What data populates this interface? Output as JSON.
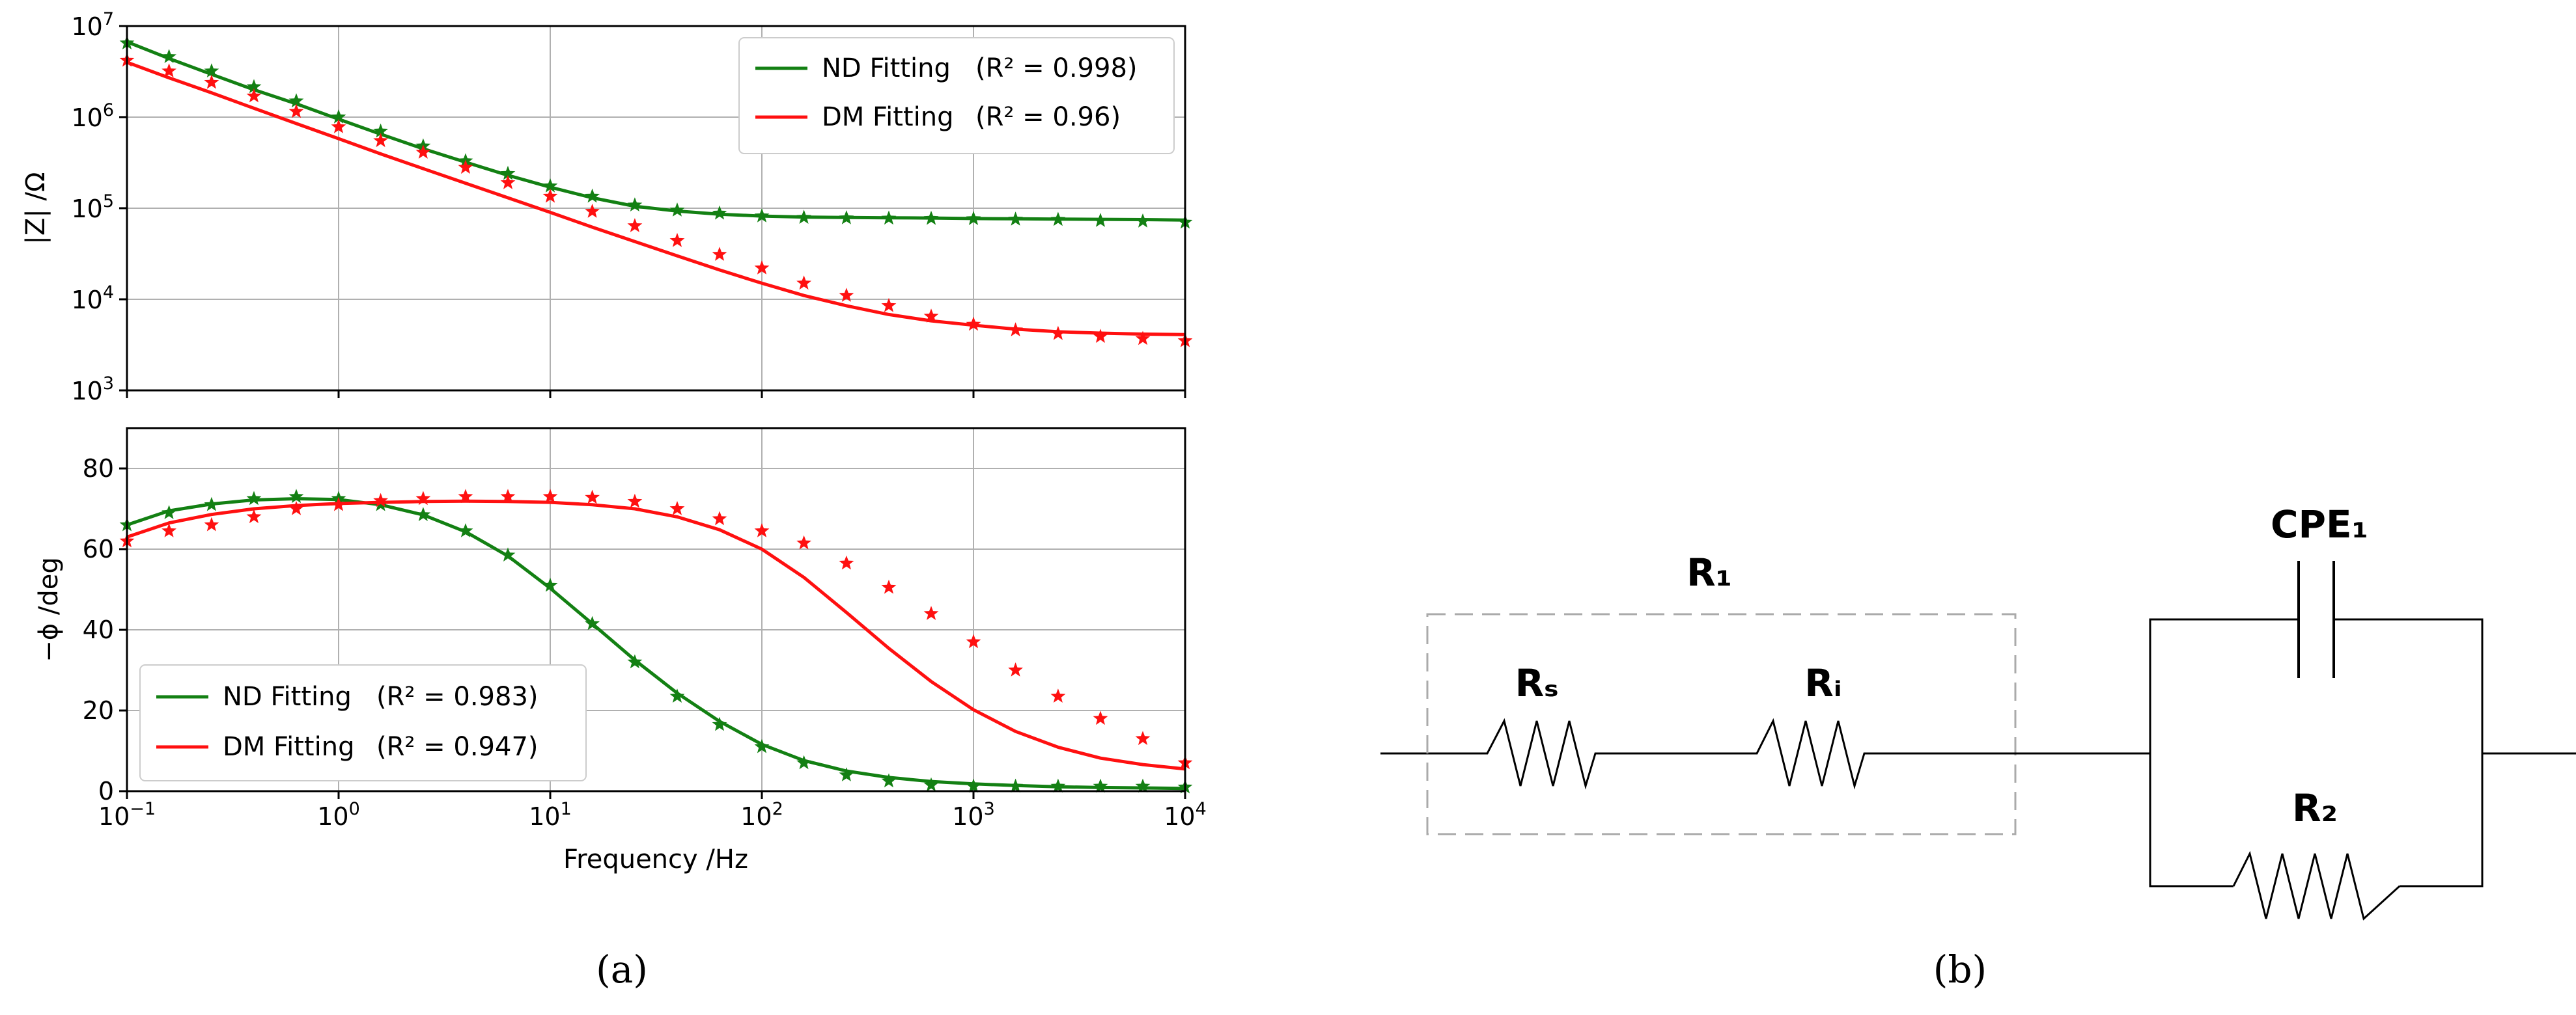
{
  "figure": {
    "panel_a_label": "(a)",
    "panel_b_label": "(b)"
  },
  "chart_data": [
    {
      "type": "line",
      "x_scale": "log",
      "y_scale": "log",
      "xlim": [
        0.1,
        10000
      ],
      "ylim": [
        1000,
        10000000
      ],
      "grid": true,
      "xlabel": "",
      "ylabel": "|Z|  /Ω",
      "y_ticks": [
        {
          "value": 1000,
          "base": "10",
          "exp": "3"
        },
        {
          "value": 10000,
          "base": "10",
          "exp": "4"
        },
        {
          "value": 100000,
          "base": "10",
          "exp": "5"
        },
        {
          "value": 1000000,
          "base": "10",
          "exp": "6"
        },
        {
          "value": 10000000,
          "base": "10",
          "exp": "7"
        }
      ],
      "legend": {
        "placement": "top-right",
        "entries": [
          {
            "name": "ND Fitting",
            "r2_text": "(R² = 0.998)"
          },
          {
            "name": "DM Fitting",
            "r2_text": "(R² = 0.96)"
          }
        ]
      },
      "colors": {
        "nd": "#138013",
        "dm": "#ff1010"
      },
      "x": [
        0.1,
        0.158,
        0.251,
        0.398,
        0.631,
        1,
        1.58,
        2.51,
        3.98,
        6.31,
        10,
        15.8,
        25.1,
        39.8,
        63.1,
        100,
        158,
        251,
        398,
        631,
        1000,
        1580,
        2510,
        3980,
        6310,
        10000
      ],
      "series": [
        {
          "name": "ND Fitting",
          "kind": "line",
          "values": [
            6700000,
            4400000,
            2950000,
            2000000,
            1400000,
            950000,
            650000,
            450000,
            320000,
            230000,
            170000,
            130000,
            105000,
            93000,
            86000,
            82000,
            80000,
            79000,
            78500,
            78000,
            77000,
            76500,
            76000,
            75500,
            75000,
            74000
          ]
        },
        {
          "name": "ND data",
          "kind": "markers",
          "values": [
            6500000,
            4600000,
            3200000,
            2150000,
            1500000,
            1000000,
            700000,
            480000,
            330000,
            240000,
            175000,
            135000,
            108000,
            95000,
            88000,
            82000,
            79000,
            78000,
            77500,
            77000,
            76500,
            75500,
            75000,
            73000,
            72000,
            70000
          ]
        },
        {
          "name": "DM Fitting",
          "kind": "line",
          "values": [
            4000000,
            2700000,
            1850000,
            1250000,
            850000,
            580000,
            395000,
            272000,
            188000,
            130000,
            90000,
            62000,
            43000,
            30000,
            21000,
            15000,
            11000,
            8500,
            6800,
            5800,
            5200,
            4700,
            4400,
            4250,
            4150,
            4100
          ]
        },
        {
          "name": "DM data",
          "kind": "markers",
          "values": [
            4200000,
            3200000,
            2400000,
            1700000,
            1150000,
            780000,
            550000,
            410000,
            280000,
            190000,
            135000,
            92000,
            64000,
            44000,
            31000,
            22000,
            15000,
            11000,
            8500,
            6500,
            5300,
            4600,
            4200,
            3900,
            3700,
            3500
          ]
        }
      ]
    },
    {
      "type": "line",
      "x_scale": "log",
      "y_scale": "linear",
      "xlim": [
        0.1,
        10000
      ],
      "ylim": [
        0,
        90
      ],
      "grid": true,
      "xlabel": "Frequency /Hz",
      "ylabel": "−ϕ /deg",
      "y_ticks": [
        0,
        20,
        40,
        60,
        80
      ],
      "x_ticks": [
        {
          "value": 0.1,
          "base": "10",
          "exp": "−1"
        },
        {
          "value": 1,
          "base": "10",
          "exp": "0"
        },
        {
          "value": 10,
          "base": "10",
          "exp": "1"
        },
        {
          "value": 100,
          "base": "10",
          "exp": "2"
        },
        {
          "value": 1000,
          "base": "10",
          "exp": "3"
        },
        {
          "value": 10000,
          "base": "10",
          "exp": "4"
        }
      ],
      "legend": {
        "placement": "lower-left",
        "entries": [
          {
            "name": "ND Fitting",
            "r2_text": "(R² = 0.983)"
          },
          {
            "name": "DM Fitting",
            "r2_text": "(R² = 0.947)"
          }
        ]
      },
      "colors": {
        "nd": "#138013",
        "dm": "#ff1010"
      },
      "x": [
        0.1,
        0.158,
        0.251,
        0.398,
        0.631,
        1,
        1.58,
        2.51,
        3.98,
        6.31,
        10,
        15.8,
        25.1,
        39.8,
        63.1,
        100,
        158,
        251,
        398,
        631,
        1000,
        1580,
        2510,
        3980,
        6310,
        10000
      ],
      "series": [
        {
          "name": "ND Fitting",
          "kind": "line",
          "values": [
            66,
            69.5,
            71.2,
            72.2,
            72.5,
            72.3,
            71,
            68.5,
            64.3,
            58.3,
            50.3,
            41.5,
            32.5,
            24.3,
            17.3,
            11.6,
            7.6,
            5.0,
            3.4,
            2.4,
            1.8,
            1.4,
            1.1,
            0.9,
            0.8,
            0.7
          ]
        },
        {
          "name": "ND data",
          "kind": "markers",
          "values": [
            66,
            69,
            71,
            72.5,
            73,
            72.5,
            71,
            68.5,
            64.5,
            58.5,
            51,
            41.5,
            32,
            23.5,
            16.5,
            11,
            7,
            4,
            2.5,
            1.5,
            1.2,
            1.2,
            1.2,
            1.2,
            1.2,
            1.0
          ]
        },
        {
          "name": "DM Fitting",
          "kind": "line",
          "values": [
            63,
            66.5,
            68.6,
            70,
            70.8,
            71.3,
            71.6,
            71.8,
            71.9,
            71.8,
            71.6,
            71.0,
            70.0,
            68.0,
            64.8,
            60.0,
            53.0,
            44.3,
            35.4,
            27.2,
            20.2,
            14.8,
            10.9,
            8.2,
            6.6,
            5.5
          ]
        },
        {
          "name": "DM data",
          "kind": "markers",
          "values": [
            62,
            64.5,
            66,
            68,
            70,
            71,
            72,
            72.5,
            73,
            73,
            73,
            72.8,
            71.8,
            70,
            67.5,
            64.5,
            61.5,
            56.5,
            50.5,
            44,
            37,
            30,
            23.5,
            18,
            13,
            7
          ]
        }
      ]
    }
  ],
  "circuit": {
    "r1_label": "R₁",
    "rs_label": "Rₛ",
    "ri_label": "Rᵢ",
    "cpe_label": "CPE₁",
    "r2_label": "R₂"
  }
}
